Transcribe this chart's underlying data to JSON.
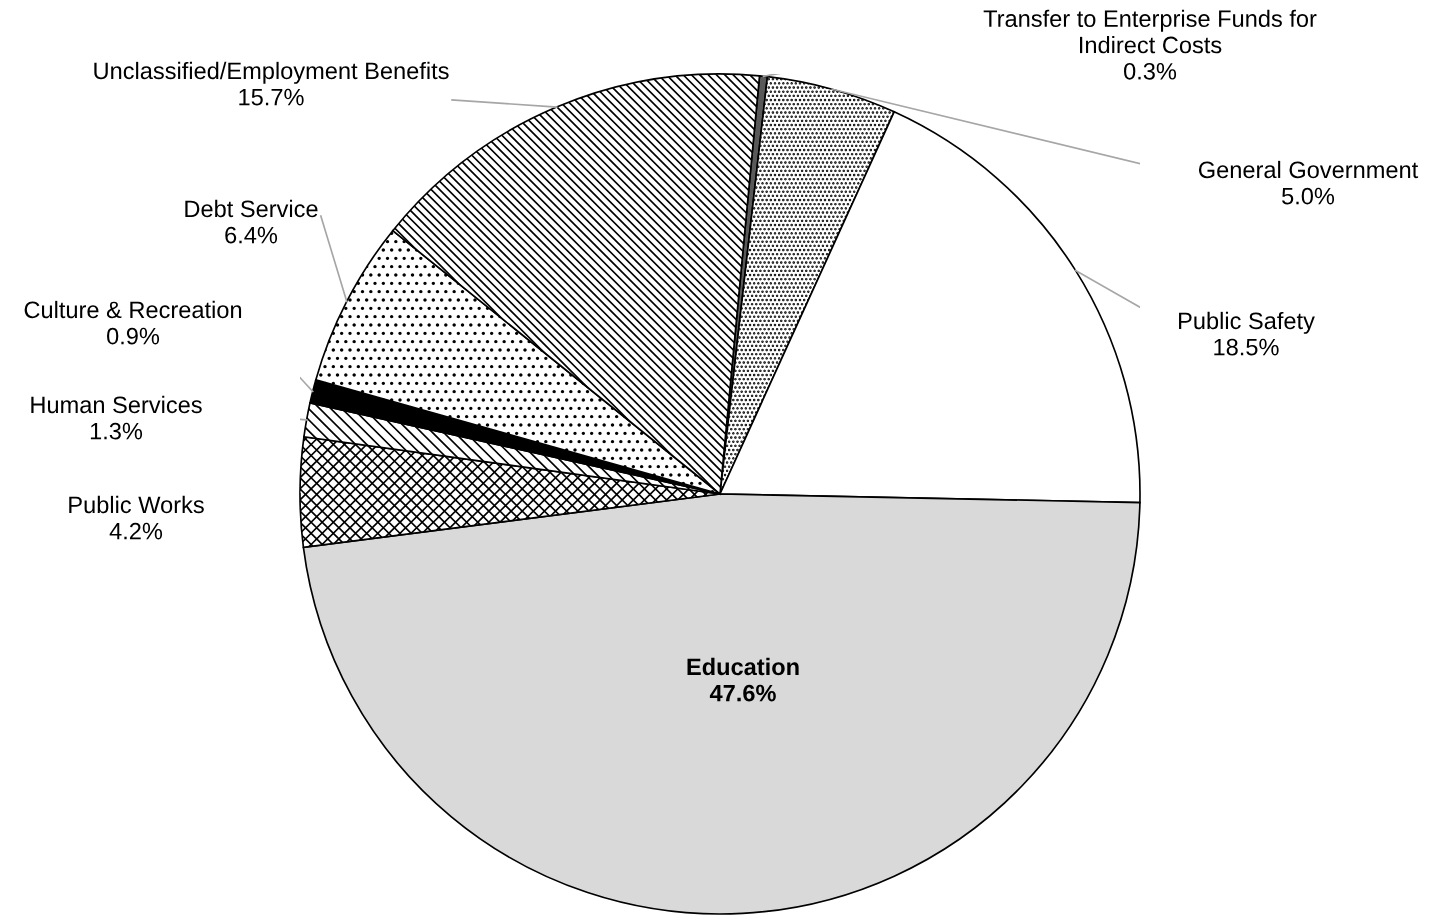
{
  "chart_data": {
    "type": "pie",
    "categories": [
      "Transfer to Enterprise Funds for\nIndirect Costs",
      "General Government",
      "Public Safety",
      "Education",
      "Public Works",
      "Human Services",
      "Culture & Recreation",
      "Debt Service",
      "Unclassified/Employment Benefits"
    ],
    "values": [
      0.3,
      5.0,
      18.5,
      47.6,
      4.2,
      1.3,
      0.9,
      6.4,
      15.7
    ],
    "value_labels": [
      "0.3%",
      "5.0%",
      "18.5%",
      "47.6%",
      "4.2%",
      "1.3%",
      "0.9%",
      "6.4%",
      "15.7%"
    ],
    "colors": [
      "#595959",
      "#000000",
      "#ffffff",
      "#d9d9d9",
      "#000000",
      "#000000",
      "#000000",
      "#000000",
      "#000000"
    ],
    "legend": false
  }
}
